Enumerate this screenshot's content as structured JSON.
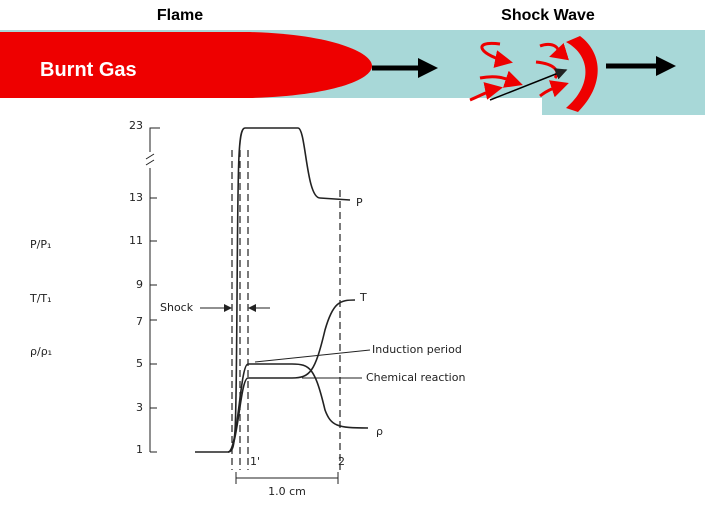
{
  "banner": {
    "flame": "Flame",
    "shock_wave": "Shock Wave",
    "burnt_gas": "Burnt Gas"
  },
  "plot": {
    "y_ticks": [
      "23",
      "13",
      "11",
      "9",
      "7",
      "5",
      "3",
      "1"
    ],
    "axis_labels": [
      "P/P₁",
      "T/T₁",
      "ρ/ρ₁"
    ],
    "curve_labels": {
      "pressure": "P",
      "temperature": "T",
      "density": "ρ"
    },
    "annotations": {
      "shock": "Shock",
      "induction": "Induction period",
      "reaction": "Chemical reaction"
    },
    "x_labels": [
      "1'",
      "2"
    ],
    "scale": "1.0 cm"
  }
}
